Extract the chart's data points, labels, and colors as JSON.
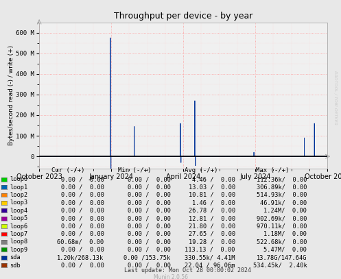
{
  "title": "Throughput per device - by year",
  "ylabel": "Bytes/second read (-) / write (+)",
  "background_color": "#e8e8e8",
  "plot_bg_color": "#f0f0f0",
  "watermark_text": "RRDTOOL / TOBI OETKER",
  "munin_text": "Munin 2.0.56",
  "last_update": "Last update: Mon Oct 28 00:00:02 2024",
  "ylim_min": -60000000,
  "ylim_max": 650000000,
  "yticks": [
    0,
    100000000,
    200000000,
    300000000,
    400000000,
    500000000,
    600000000
  ],
  "ytick_labels": [
    "0",
    "100 M",
    "200 M",
    "300 M",
    "400 M",
    "500 M",
    "600 M"
  ],
  "xtick_positions": [
    0.0,
    0.25,
    0.5,
    0.75,
    1.0
  ],
  "xtick_labels": [
    "October 2023",
    "January 2024",
    "April 2024",
    "July 2024",
    "October 2024"
  ],
  "legend_items": [
    {
      "name": "loop0",
      "color": "#00cc00"
    },
    {
      "name": "loop1",
      "color": "#0066b3"
    },
    {
      "name": "loop2",
      "color": "#ff8000"
    },
    {
      "name": "loop3",
      "color": "#ffcc00"
    },
    {
      "name": "loop4",
      "color": "#330099"
    },
    {
      "name": "loop5",
      "color": "#990099"
    },
    {
      "name": "loop6",
      "color": "#ccff00"
    },
    {
      "name": "loop7",
      "color": "#ff0000"
    },
    {
      "name": "loop8",
      "color": "#808080"
    },
    {
      "name": "loop9",
      "color": "#008f00"
    },
    {
      "name": "sda",
      "color": "#003399"
    },
    {
      "name": "sdb",
      "color": "#993300"
    }
  ],
  "table_rows": [
    [
      "loop0",
      "0.00 /  0.00",
      "0.00 /  0.00",
      "4.46 /  0.00",
      "112.36k/  0.00"
    ],
    [
      "loop1",
      "0.00 /  0.00",
      "0.00 /  0.00",
      "13.03 /  0.00",
      "306.89k/  0.00"
    ],
    [
      "loop2",
      "0.00 /  0.00",
      "0.00 /  0.00",
      "10.81 /  0.00",
      "514.93k/  0.00"
    ],
    [
      "loop3",
      "0.00 /  0.00",
      "0.00 /  0.00",
      "1.46 /  0.00",
      "46.91k/  0.00"
    ],
    [
      "loop4",
      "0.00 /  0.00",
      "0.00 /  0.00",
      "26.78 /  0.00",
      "1.24M/  0.00"
    ],
    [
      "loop5",
      "0.00 /  0.00",
      "0.00 /  0.00",
      "12.81 /  0.00",
      "902.69k/  0.00"
    ],
    [
      "loop6",
      "0.00 /  0.00",
      "0.00 /  0.00",
      "21.80 /  0.00",
      "970.11k/  0.00"
    ],
    [
      "loop7",
      "0.00 /  0.00",
      "0.00 /  0.00",
      "27.65 /  0.00",
      "1.18M/  0.00"
    ],
    [
      "loop8",
      "60.68m/  0.00",
      "0.00 /  0.00",
      "19.28 /  0.00",
      "522.68k/  0.00"
    ],
    [
      "loop9",
      "0.00 /  0.00",
      "0.00 /  0.00",
      "113.13 /  0.00",
      "5.47M/  0.00"
    ],
    [
      "sda",
      "1.20k/268.13k",
      "0.00 /153.75k",
      "330.55k/ 4.41M",
      "13.78G/147.64G"
    ],
    [
      "sdb",
      "0.00 /  0.00",
      "0.00 /  0.00",
      "22.04 / 96.06m",
      "534.45k/  2.40k"
    ]
  ],
  "spikes": [
    {
      "t": 0.247,
      "v": 575000000
    },
    {
      "t": 0.249,
      "v": -60000000
    },
    {
      "t": 0.33,
      "v": 145000000
    },
    {
      "t": 0.332,
      "v": 0
    },
    {
      "t": 0.49,
      "v": 160000000
    },
    {
      "t": 0.492,
      "v": -30000000
    },
    {
      "t": 0.54,
      "v": 270000000
    },
    {
      "t": 0.542,
      "v": -45000000
    },
    {
      "t": 0.745,
      "v": 20000000
    },
    {
      "t": 0.92,
      "v": 90000000
    },
    {
      "t": 0.94,
      "v": 0
    },
    {
      "t": 0.955,
      "v": 160000000
    }
  ]
}
